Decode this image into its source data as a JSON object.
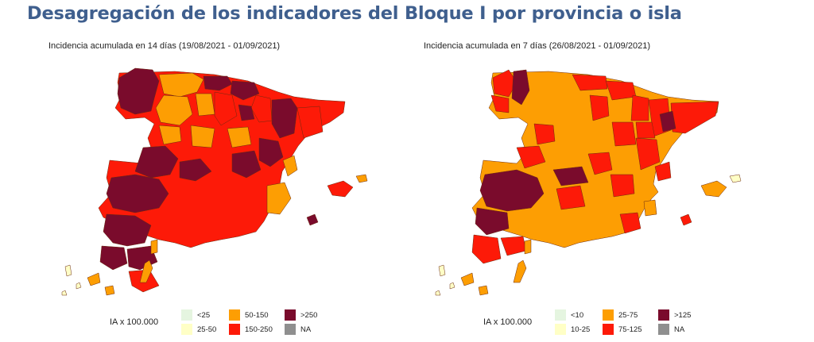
{
  "title": "Desagregación de los indicadores del Bloque I por provincia o isla",
  "colors": {
    "c1": "#e5f5e0",
    "c2": "#ffffc6",
    "c3": "#fd9e03",
    "c4": "#fd1a08",
    "c5": "#7a0b2c",
    "na": "#8f8f8f"
  },
  "maps": [
    {
      "subtitle": "Incidencia acumulada en 14 días (19/08/2021 - 01/09/2021)",
      "legend_title": "IA x 100.000",
      "legend": [
        {
          "label": "<25",
          "color": "#e5f5e0"
        },
        {
          "label": "25-50",
          "color": "#ffffc6"
        },
        {
          "label": "50-150",
          "color": "#fd9e03"
        },
        {
          "label": "150-250",
          "color": "#fd1a08"
        },
        {
          "label": ">250",
          "color": "#7a0b2c"
        },
        {
          "label": "NA",
          "color": "#8f8f8f"
        }
      ]
    },
    {
      "subtitle": "Incidencia acumulada en 7 días (26/08/2021 - 01/09/2021)",
      "legend_title": "IA x 100.000",
      "legend": [
        {
          "label": "<10",
          "color": "#e5f5e0"
        },
        {
          "label": "10-25",
          "color": "#ffffc6"
        },
        {
          "label": "25-75",
          "color": "#fd9e03"
        },
        {
          "label": "75-125",
          "color": "#fd1a08"
        },
        {
          "label": ">125",
          "color": "#7a0b2c"
        },
        {
          "label": "NA",
          "color": "#8f8f8f"
        }
      ]
    }
  ]
}
